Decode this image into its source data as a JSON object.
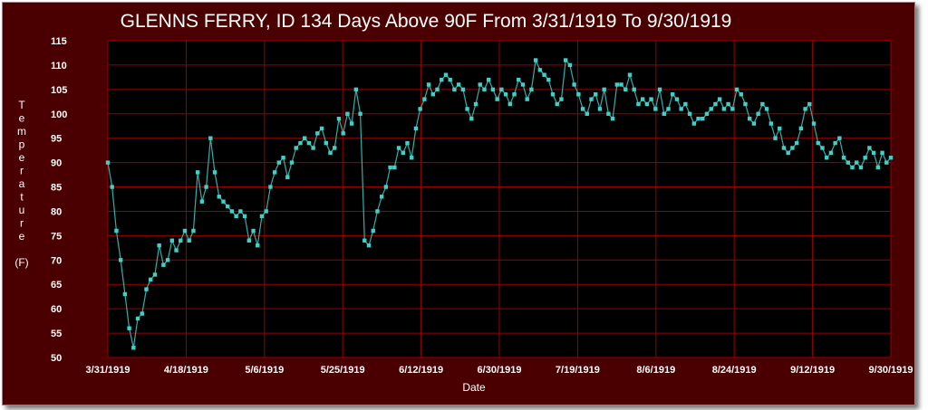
{
  "chart_data": {
    "type": "line",
    "title": "GLENNS FERRY, ID  134 Days Above 90F From 3/31/1919 To 9/30/1919",
    "xlabel": "Date",
    "ylabel_letters": [
      "T",
      "e",
      "m",
      "p",
      "e",
      "r",
      "a",
      "t",
      "u",
      "r",
      "e"
    ],
    "ylabel_unit": "(F)",
    "x_start": "1919-03-31",
    "x_end": "1919-09-30",
    "x_tick_labels": [
      "3/31/1919",
      "4/18/1919",
      "5/6/1919",
      "5/25/1919",
      "6/12/1919",
      "6/30/1919",
      "7/19/1919",
      "8/6/1919",
      "8/24/1919",
      "9/12/1919",
      "9/30/1919"
    ],
    "ylim": [
      50,
      115
    ],
    "y_ticks": [
      50,
      55,
      60,
      65,
      70,
      75,
      80,
      85,
      90,
      95,
      100,
      105,
      110,
      115
    ],
    "grid": true,
    "colors": {
      "background": "#4a0000",
      "plot": "#000000",
      "grid": "#9a0000",
      "line": "#30b0a8",
      "marker": "#40d0c8",
      "text": "#ffffff"
    },
    "values": [
      90,
      85,
      76,
      70,
      63,
      56,
      52,
      58,
      59,
      64,
      66,
      67,
      73,
      69,
      70,
      74,
      72,
      74,
      76,
      74,
      76,
      88,
      82,
      85,
      95,
      88,
      83,
      82,
      81,
      80,
      79,
      80,
      79,
      74,
      76,
      73,
      79,
      80,
      85,
      88,
      90,
      91,
      87,
      90,
      93,
      94,
      95,
      94,
      93,
      96,
      97,
      94,
      92,
      93,
      99,
      96,
      100,
      98,
      105,
      100,
      74,
      73,
      76,
      80,
      83,
      85,
      89,
      89,
      93,
      92,
      94,
      91,
      97,
      101,
      103,
      106,
      104,
      105,
      107,
      108,
      107,
      105,
      106,
      105,
      101,
      99,
      102,
      106,
      105,
      107,
      105,
      103,
      105,
      104,
      102,
      104,
      107,
      106,
      103,
      105,
      111,
      109,
      108,
      107,
      104,
      102,
      103,
      111,
      110,
      106,
      104,
      101,
      100,
      103,
      104,
      101,
      105,
      100,
      99,
      106,
      106,
      105,
      108,
      105,
      102,
      103,
      102,
      103,
      101,
      105,
      100,
      101,
      104,
      103,
      101,
      102,
      100,
      98,
      99,
      99,
      100,
      101,
      102,
      103,
      101,
      102,
      101,
      105,
      104,
      102,
      99,
      98,
      100,
      102,
      101,
      98,
      95,
      97,
      93,
      92,
      93,
      94,
      97,
      101,
      102,
      98,
      94,
      93,
      91,
      92,
      94,
      95,
      91,
      90,
      89,
      90,
      89,
      91,
      93,
      92,
      89,
      92,
      90,
      91
    ]
  }
}
